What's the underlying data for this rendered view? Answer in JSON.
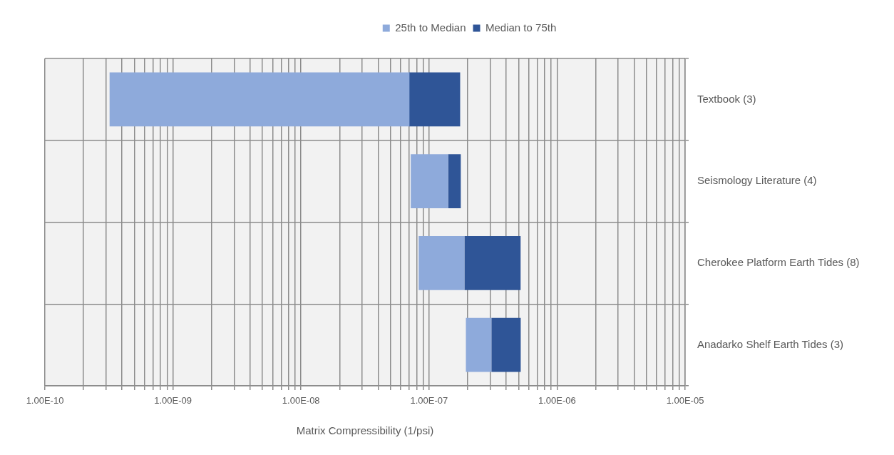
{
  "chart_data": {
    "type": "bar",
    "orientation": "horizontal",
    "log": "x",
    "categories": [
      "Textbook (3)",
      "Seismology Literature (4)",
      "Cherokee Platform Earth Tides (8)",
      "Anadarko Shelf Earth Tides (3)"
    ],
    "series": [
      {
        "name": "25th to Median",
        "color": "#8eaadb",
        "base": [
          3.2e-10,
          7.2e-08,
          8.3e-08,
          1.94e-07
        ],
        "values": [
          7e-08,
          6.9e-08,
          1.06e-07,
          1.13e-07
        ]
      },
      {
        "name": "Median to 75th",
        "color": "#2f5597",
        "base": [
          7e-08,
          1.41e-07,
          1.89e-07,
          3.07e-07
        ],
        "values": [
          1.05e-07,
          3.6e-08,
          3.3e-07,
          2.13e-07
        ]
      }
    ],
    "xlim": [
      1e-10,
      1e-05
    ],
    "xticks": [
      {
        "value": 1e-10,
        "label": "1.00E-10"
      },
      {
        "value": 2e-10,
        "label": null
      },
      {
        "value": 3e-10,
        "label": null
      },
      {
        "value": 4e-10,
        "label": null
      },
      {
        "value": 5e-10,
        "label": null
      },
      {
        "value": 6e-10,
        "label": null
      },
      {
        "value": 7e-10,
        "label": null
      },
      {
        "value": 8e-10,
        "label": null
      },
      {
        "value": 9e-10,
        "label": null
      },
      {
        "value": 1e-09,
        "label": "1.00E-09"
      },
      {
        "value": 2e-09,
        "label": null
      },
      {
        "value": 3e-09,
        "label": null
      },
      {
        "value": 4e-09,
        "label": null
      },
      {
        "value": 5e-09,
        "label": null
      },
      {
        "value": 6e-09,
        "label": null
      },
      {
        "value": 7e-09,
        "label": null
      },
      {
        "value": 8e-09,
        "label": null
      },
      {
        "value": 9e-09,
        "label": null
      },
      {
        "value": 1e-08,
        "label": "1.00E-08"
      },
      {
        "value": 2e-08,
        "label": null
      },
      {
        "value": 3e-08,
        "label": null
      },
      {
        "value": 4e-08,
        "label": null
      },
      {
        "value": 5e-08,
        "label": null
      },
      {
        "value": 6e-08,
        "label": null
      },
      {
        "value": 7e-08,
        "label": null
      },
      {
        "value": 8e-08,
        "label": null
      },
      {
        "value": 9e-08,
        "label": null
      },
      {
        "value": 1e-07,
        "label": "1.00E-07"
      },
      {
        "value": 2e-07,
        "label": null
      },
      {
        "value": 3e-07,
        "label": null
      },
      {
        "value": 4e-07,
        "label": null
      },
      {
        "value": 5e-07,
        "label": null
      },
      {
        "value": 6e-07,
        "label": null
      },
      {
        "value": 7e-07,
        "label": null
      },
      {
        "value": 8e-07,
        "label": null
      },
      {
        "value": 9e-07,
        "label": null
      },
      {
        "value": 1e-06,
        "label": "1.00E-06"
      },
      {
        "value": 2e-06,
        "label": null
      },
      {
        "value": 3e-06,
        "label": null
      },
      {
        "value": 4e-06,
        "label": null
      },
      {
        "value": 5e-06,
        "label": null
      },
      {
        "value": 6e-06,
        "label": null
      },
      {
        "value": 7e-06,
        "label": null
      },
      {
        "value": 8e-06,
        "label": null
      },
      {
        "value": 9e-06,
        "label": null
      },
      {
        "value": 1e-05,
        "label": "1.00E-05"
      }
    ],
    "xlabel": "Matrix Compressibility (1/psi)",
    "grid": true,
    "legend": "top"
  }
}
